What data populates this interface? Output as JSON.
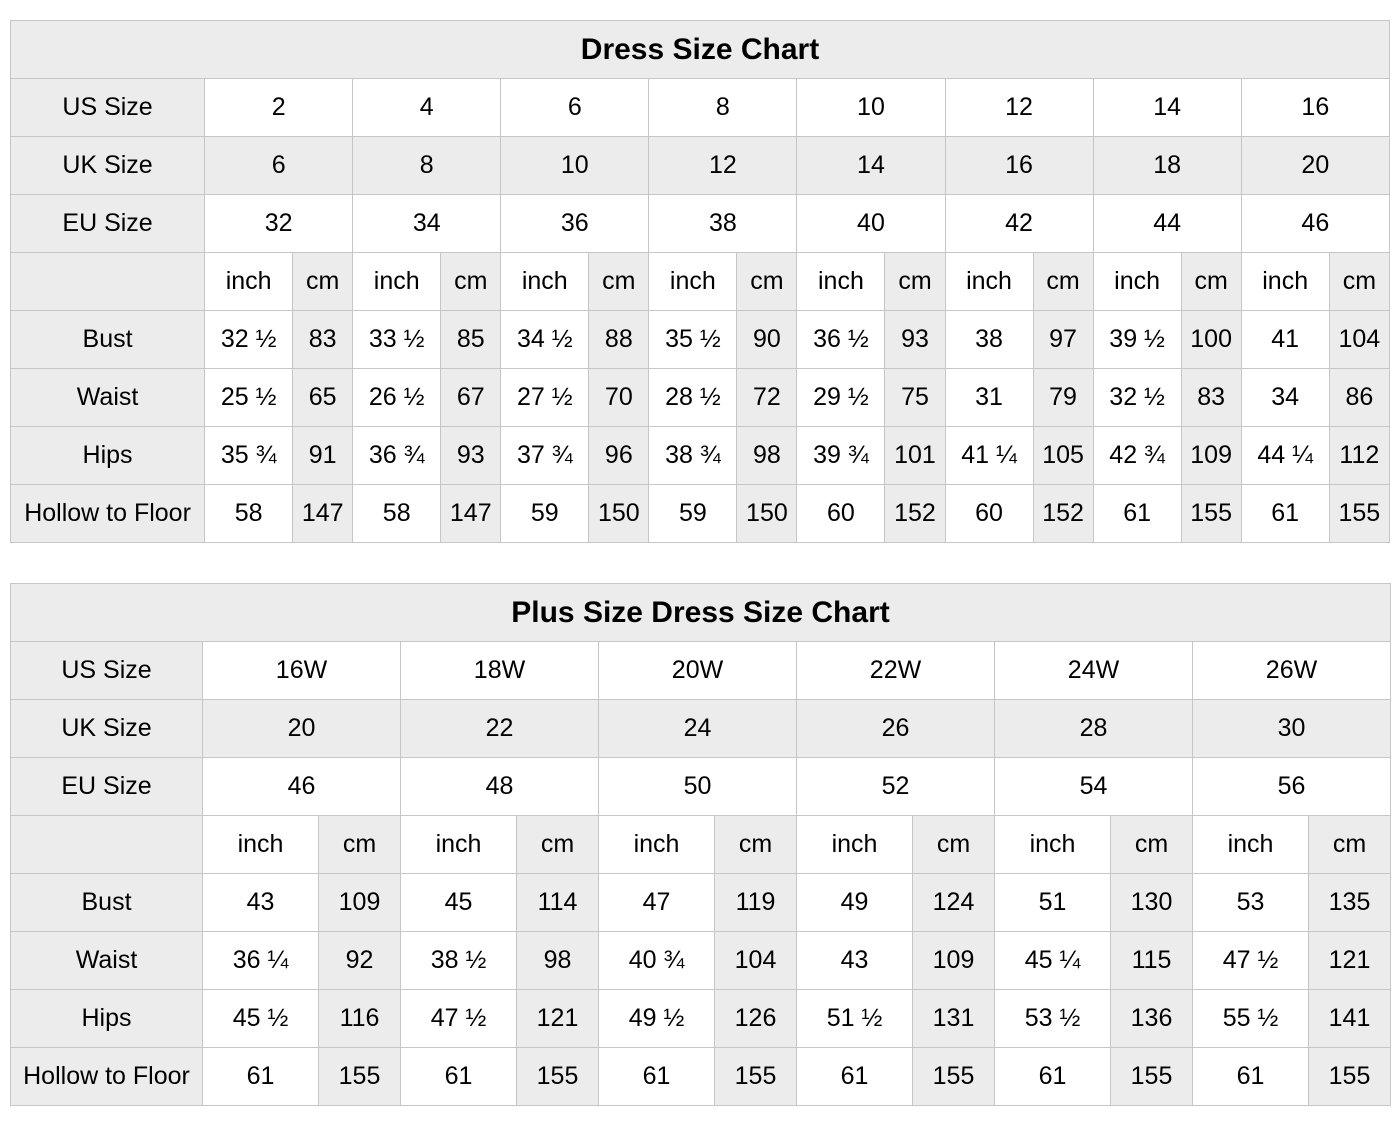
{
  "page": {
    "background": "#ffffff"
  },
  "style": {
    "shaded_cell_color": "#ececec",
    "plain_cell_color": "#ffffff",
    "border_color": "#c6c6c6",
    "text_color": "#000000"
  },
  "chart_data": [
    {
      "type": "table",
      "title": "Dress Size Chart",
      "unit_labels": [
        "inch",
        "cm"
      ],
      "size_rows": [
        {
          "label": "US Size",
          "shaded": false,
          "values": [
            "2",
            "4",
            "6",
            "8",
            "10",
            "12",
            "14",
            "16"
          ]
        },
        {
          "label": "UK Size",
          "shaded": true,
          "values": [
            "6",
            "8",
            "10",
            "12",
            "14",
            "16",
            "18",
            "20"
          ]
        },
        {
          "label": "EU Size",
          "shaded": false,
          "values": [
            "32",
            "34",
            "36",
            "38",
            "40",
            "42",
            "44",
            "46"
          ]
        }
      ],
      "measure_rows": [
        {
          "label": "Bust",
          "inch": [
            "32 ½",
            "33 ½",
            "34 ½",
            "35 ½",
            "36 ½",
            "38",
            "39 ½",
            "41"
          ],
          "cm": [
            "83",
            "85",
            "88",
            "90",
            "93",
            "97",
            "100",
            "104"
          ]
        },
        {
          "label": "Waist",
          "inch": [
            "25 ½",
            "26 ½",
            "27 ½",
            "28 ½",
            "29 ½",
            "31",
            "32 ½",
            "34"
          ],
          "cm": [
            "65",
            "67",
            "70",
            "72",
            "75",
            "79",
            "83",
            "86"
          ]
        },
        {
          "label": "Hips",
          "inch": [
            "35 ¾",
            "36 ¾",
            "37 ¾",
            "38 ¾",
            "39 ¾",
            "41 ¼",
            "42 ¾",
            "44 ¼"
          ],
          "cm": [
            "91",
            "93",
            "96",
            "98",
            "101",
            "105",
            "109",
            "112"
          ]
        },
        {
          "label": "Hollow to Floor",
          "inch": [
            "58",
            "58",
            "59",
            "59",
            "60",
            "60",
            "61",
            "61"
          ],
          "cm": [
            "147",
            "147",
            "150",
            "150",
            "152",
            "152",
            "155",
            "155"
          ]
        }
      ]
    },
    {
      "type": "table",
      "title": "Plus Size Dress Size Chart",
      "unit_labels": [
        "inch",
        "cm"
      ],
      "size_rows": [
        {
          "label": "US Size",
          "shaded": false,
          "values": [
            "16W",
            "18W",
            "20W",
            "22W",
            "24W",
            "26W"
          ]
        },
        {
          "label": "UK Size",
          "shaded": true,
          "values": [
            "20",
            "22",
            "24",
            "26",
            "28",
            "30"
          ]
        },
        {
          "label": "EU Size",
          "shaded": false,
          "values": [
            "46",
            "48",
            "50",
            "52",
            "54",
            "56"
          ]
        }
      ],
      "measure_rows": [
        {
          "label": "Bust",
          "inch": [
            "43",
            "45",
            "47",
            "49",
            "51",
            "53"
          ],
          "cm": [
            "109",
            "114",
            "119",
            "124",
            "130",
            "135"
          ]
        },
        {
          "label": "Waist",
          "inch": [
            "36 ¼",
            "38 ½",
            "40 ¾",
            "43",
            "45 ¼",
            "47 ½"
          ],
          "cm": [
            "92",
            "98",
            "104",
            "109",
            "115",
            "121"
          ]
        },
        {
          "label": "Hips",
          "inch": [
            "45 ½",
            "47 ½",
            "49 ½",
            "51 ½",
            "53 ½",
            "55 ½"
          ],
          "cm": [
            "116",
            "121",
            "126",
            "131",
            "136",
            "141"
          ]
        },
        {
          "label": "Hollow to Floor",
          "inch": [
            "61",
            "61",
            "61",
            "61",
            "61",
            "61"
          ],
          "cm": [
            "155",
            "155",
            "155",
            "155",
            "155",
            "155"
          ]
        }
      ]
    }
  ]
}
